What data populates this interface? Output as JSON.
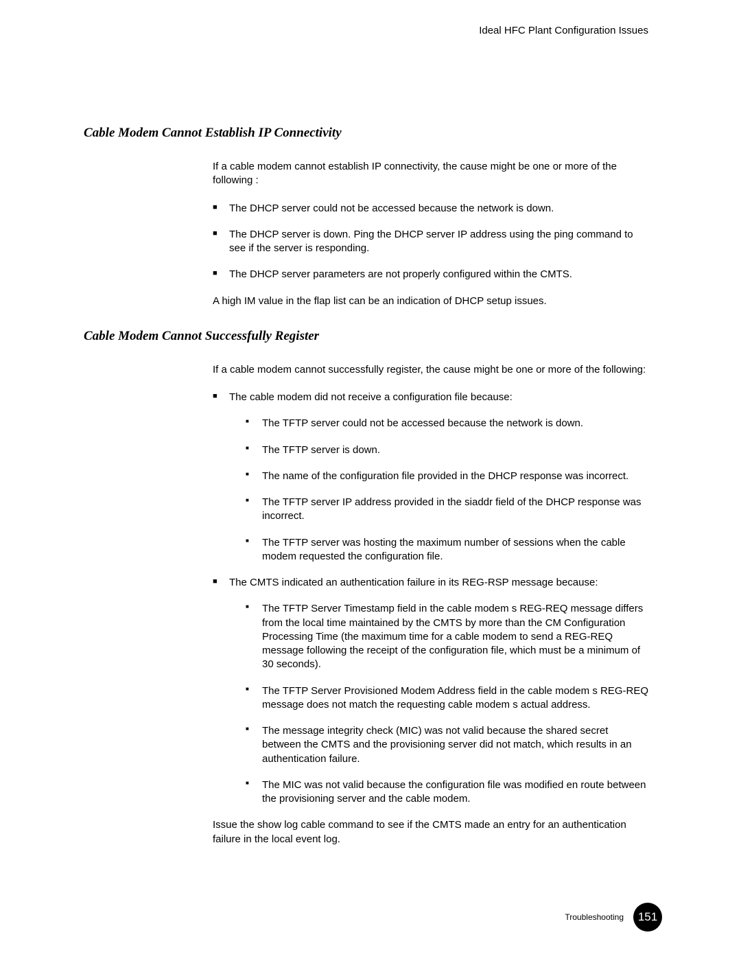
{
  "header": {
    "right_text": "Ideal HFC Plant Configuration Issues"
  },
  "sections": {
    "s1": {
      "heading": "Cable Modem Cannot Establish IP Connectivity",
      "intro": "If a cable modem cannot establish IP connectivity, the cause might be one or more of the following :",
      "bullets": {
        "b0": "The DHCP server could not be accessed because the network is down.",
        "b1": "The DHCP server is down. Ping the DHCP server IP address using the ping command to see if the server is responding.",
        "b2": "The DHCP server parameters are not properly configured within the CMTS."
      },
      "after": "A high IM value in the flap list can be an indication of DHCP setup issues."
    },
    "s2": {
      "heading": "Cable Modem Cannot Successfully Register",
      "intro": "If a cable modem cannot successfully register, the cause might be one or more of the following:",
      "bullets": {
        "b0": {
          "text": "The cable modem did not receive a configuration file because:",
          "sub": {
            "s0": "The TFTP server could not be accessed because the network is down.",
            "s1": "The TFTP server is down.",
            "s2": "The name of the configuration file provided in the DHCP response was incorrect.",
            "s3": "The TFTP server IP address provided in the siaddr field of the DHCP response was incorrect.",
            "s4": "The TFTP server was hosting the maximum number of sessions when the cable modem requested the configuration file."
          }
        },
        "b1": {
          "text": "The CMTS indicated an authentication failure in its REG-RSP message because:",
          "sub": {
            "s0": "The TFTP Server Timestamp field in the cable modem s REG-REQ message differs from the local time maintained by the CMTS by more than the CM Configuration Processing Time (the maximum time for a cable modem to send a REG-REQ message following the receipt of the configuration file, which must be a minimum of 30 seconds).",
            "s1": "The TFTP Server Provisioned Modem Address field in the cable modem s REG-REQ message does not match the requesting cable modem s actual address.",
            "s2": "The message integrity check (MIC) was not valid because the shared secret between the CMTS and the provisioning server did not match, which results in an authentication failure.",
            "s3": "The MIC was not valid because the configuration file was modified en route between the provisioning server and the cable modem."
          }
        }
      },
      "after": "Issue the show log cable command to see if the CMTS made an entry for an authentication failure in the local event log."
    }
  },
  "footer": {
    "label": "Troubleshooting",
    "page": "151"
  },
  "colors": {
    "text": "#000000",
    "background": "#ffffff",
    "page_badge_bg": "#000000",
    "page_badge_fg": "#ffffff"
  }
}
